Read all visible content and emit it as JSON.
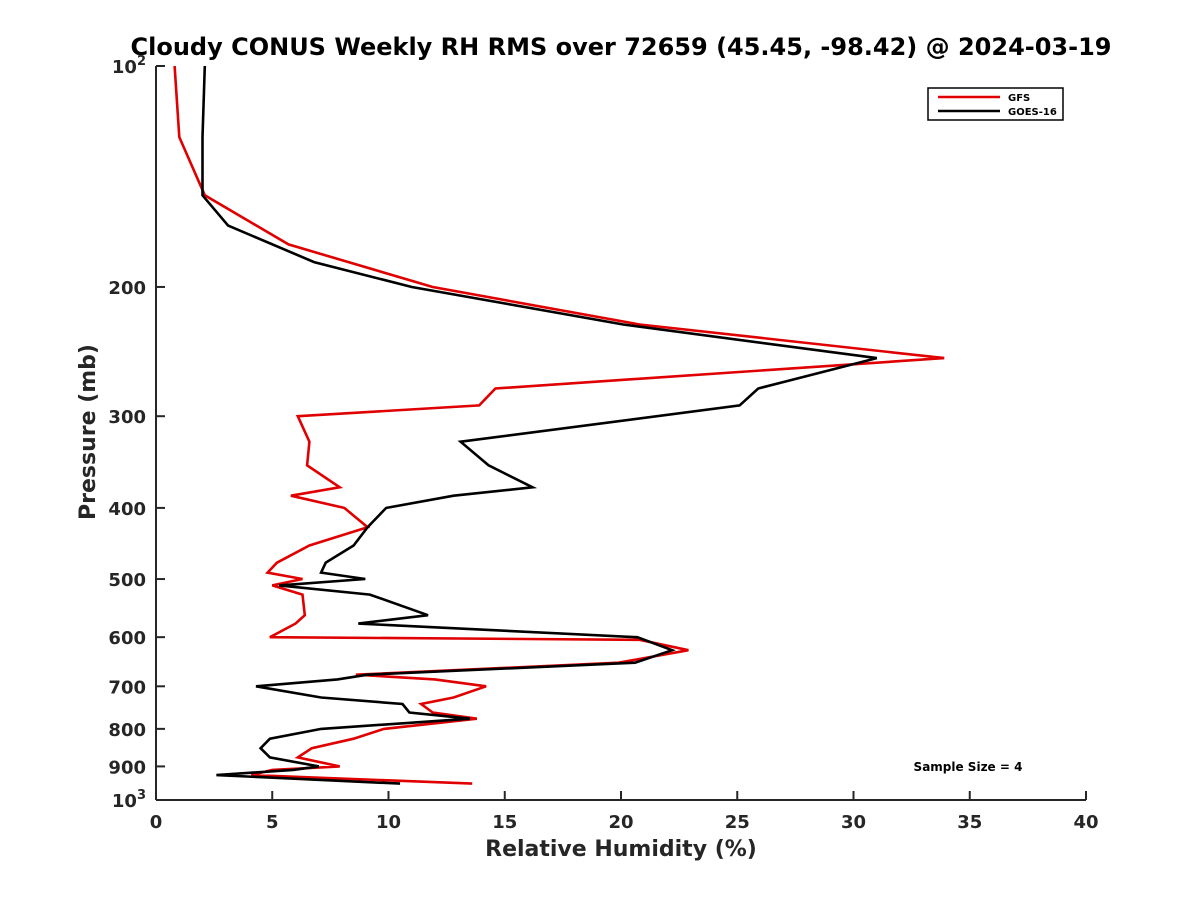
{
  "chart_data": {
    "type": "line",
    "title": "Cloudy CONUS Weekly RH RMS over 72659 (45.45, -98.42) @ 2024-03-19",
    "xlabel": "Relative Humidity (%)",
    "ylabel": "Pressure (mb)",
    "xlim": [
      0,
      40
    ],
    "ylim": [
      100,
      1000
    ],
    "y_scale": "log",
    "y_reversed": true,
    "grid": false,
    "legend_position": "top-right",
    "x_ticks": [
      0,
      5,
      10,
      15,
      20,
      25,
      30,
      35,
      40
    ],
    "y_ticks": [
      {
        "value": 100,
        "base": "10",
        "exp": "2"
      },
      {
        "value": 200,
        "label": "200"
      },
      {
        "value": 300,
        "label": "300"
      },
      {
        "value": 400,
        "label": "400"
      },
      {
        "value": 500,
        "label": "500"
      },
      {
        "value": 600,
        "label": "600"
      },
      {
        "value": 700,
        "label": "700"
      },
      {
        "value": 800,
        "label": "800"
      },
      {
        "value": 900,
        "label": "900"
      },
      {
        "value": 1000,
        "base": "10",
        "exp": "3"
      }
    ],
    "series": [
      {
        "name": "GFS",
        "color": "#e00000",
        "points": [
          [
            0.8,
            100
          ],
          [
            1.0,
            125
          ],
          [
            2.1,
            150
          ],
          [
            5.7,
            175
          ],
          [
            11.9,
            200
          ],
          [
            20.8,
            225
          ],
          [
            33.9,
            250
          ],
          [
            14.6,
            275
          ],
          [
            13.9,
            290
          ],
          [
            6.1,
            300
          ],
          [
            6.6,
            325
          ],
          [
            6.5,
            350
          ],
          [
            7.9,
            375
          ],
          [
            5.8,
            385
          ],
          [
            8.1,
            400
          ],
          [
            9.1,
            425
          ],
          [
            6.6,
            450
          ],
          [
            5.2,
            475
          ],
          [
            4.8,
            490
          ],
          [
            6.3,
            500
          ],
          [
            5.0,
            510
          ],
          [
            6.3,
            525
          ],
          [
            6.4,
            560
          ],
          [
            6.0,
            575
          ],
          [
            4.9,
            600
          ],
          [
            20.8,
            605
          ],
          [
            22.9,
            625
          ],
          [
            19.9,
            650
          ],
          [
            8.6,
            675
          ],
          [
            12.0,
            685
          ],
          [
            14.2,
            700
          ],
          [
            12.8,
            725
          ],
          [
            11.4,
            740
          ],
          [
            11.9,
            760
          ],
          [
            13.8,
            775
          ],
          [
            9.8,
            800
          ],
          [
            8.5,
            825
          ],
          [
            6.7,
            850
          ],
          [
            6.1,
            875
          ],
          [
            7.9,
            900
          ],
          [
            5.0,
            910
          ],
          [
            4.1,
            925
          ],
          [
            13.6,
            950
          ]
        ]
      },
      {
        "name": "GOES-16",
        "color": "#000000",
        "points": [
          [
            2.1,
            100
          ],
          [
            2.0,
            125
          ],
          [
            2.0,
            150
          ],
          [
            3.1,
            165
          ],
          [
            6.8,
            185
          ],
          [
            11.0,
            200
          ],
          [
            20.1,
            225
          ],
          [
            31.0,
            250
          ],
          [
            25.9,
            275
          ],
          [
            25.1,
            290
          ],
          [
            13.1,
            325
          ],
          [
            14.3,
            350
          ],
          [
            16.2,
            375
          ],
          [
            12.8,
            385
          ],
          [
            9.9,
            400
          ],
          [
            9.1,
            425
          ],
          [
            8.5,
            450
          ],
          [
            7.3,
            475
          ],
          [
            7.1,
            490
          ],
          [
            9.0,
            500
          ],
          [
            5.3,
            510
          ],
          [
            9.2,
            525
          ],
          [
            11.7,
            560
          ],
          [
            8.7,
            575
          ],
          [
            20.7,
            600
          ],
          [
            22.2,
            625
          ],
          [
            20.6,
            650
          ],
          [
            9.1,
            675
          ],
          [
            7.8,
            685
          ],
          [
            4.3,
            700
          ],
          [
            7.1,
            725
          ],
          [
            10.6,
            740
          ],
          [
            10.9,
            760
          ],
          [
            13.5,
            775
          ],
          [
            7.1,
            800
          ],
          [
            4.9,
            825
          ],
          [
            4.5,
            850
          ],
          [
            4.9,
            875
          ],
          [
            7.0,
            900
          ],
          [
            5.9,
            910
          ],
          [
            2.6,
            925
          ],
          [
            10.5,
            950
          ]
        ]
      }
    ],
    "annotations": [
      "Sample Size = 4"
    ]
  }
}
